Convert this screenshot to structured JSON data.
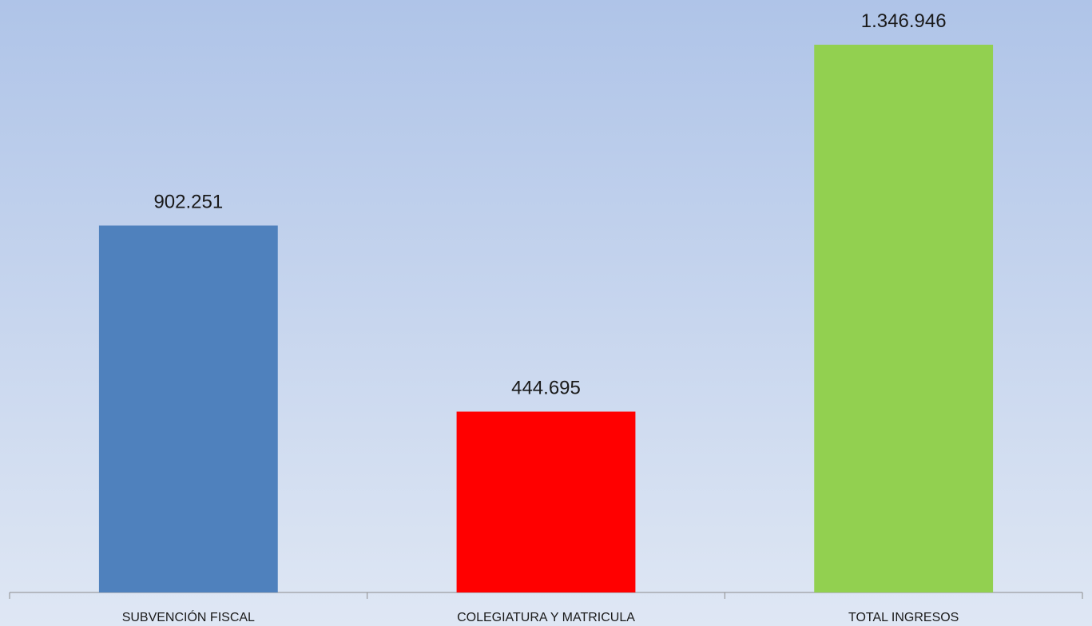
{
  "chart_data": {
    "type": "bar",
    "categories": [
      "SUBVENCIÓN FISCAL",
      "COLEGIATURA Y MATRICULA",
      "TOTAL INGRESOS"
    ],
    "values": [
      902251,
      444695,
      1346946
    ],
    "value_labels": [
      "902.251",
      "444.695",
      "1.346.946"
    ],
    "colors": [
      "#4f81bd",
      "#ff0000",
      "#92d050"
    ]
  }
}
